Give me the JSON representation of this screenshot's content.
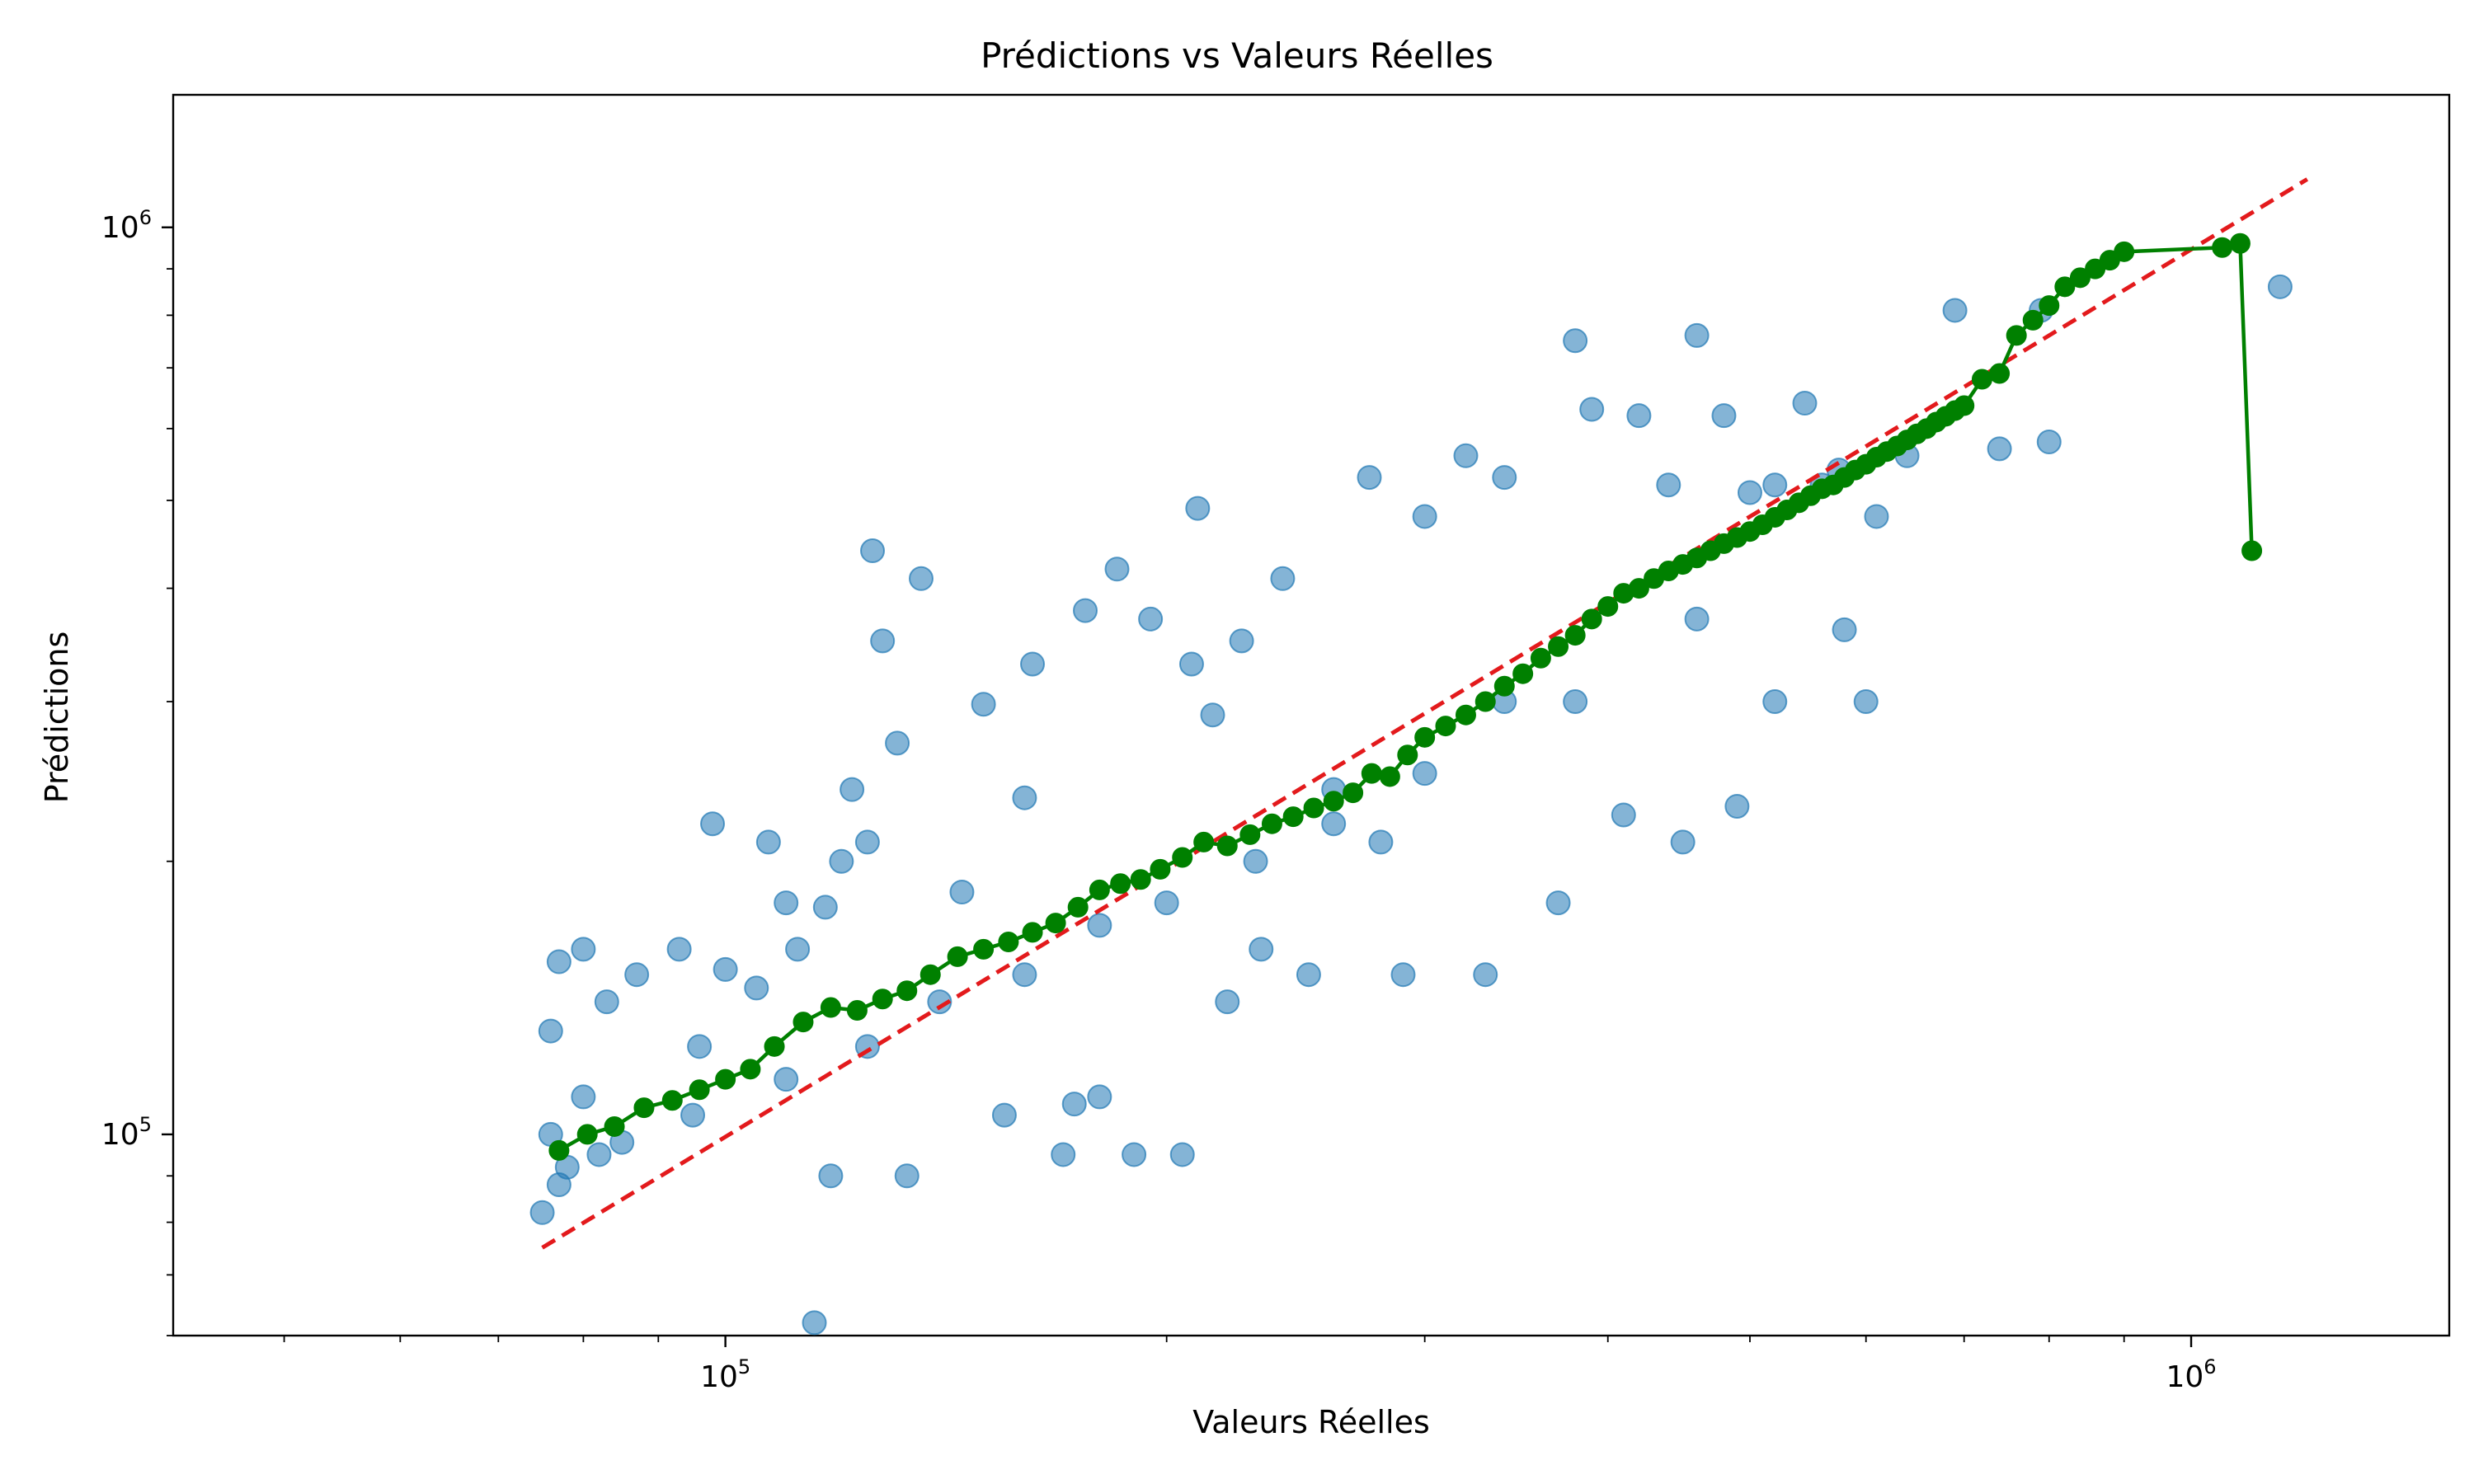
{
  "chart_data": {
    "type": "scatter",
    "title": "Prédictions vs Valeurs Réelles",
    "xlabel": "Valeurs Réelles",
    "ylabel": "Prédictions",
    "xscale": "log",
    "yscale": "log",
    "xlim": [
      42000,
      1500000
    ],
    "ylim": [
      60000,
      1400000
    ],
    "grid": false,
    "x_ticks": [
      {
        "value": 100000,
        "base": "10",
        "exp": "5"
      },
      {
        "value": 1000000,
        "base": "10",
        "exp": "6"
      }
    ],
    "y_ticks": [
      {
        "value": 100000,
        "base": "10",
        "exp": "5"
      },
      {
        "value": 1000000,
        "base": "10",
        "exp": "6"
      }
    ],
    "colors": {
      "scatter": "#1f77b4",
      "reference": "#e31a1c",
      "trend": "#008000"
    },
    "series": [
      {
        "kind": "scatter",
        "points": [
          [
            75000,
            82000
          ],
          [
            76000,
            130000
          ],
          [
            77000,
            155000
          ],
          [
            80000,
            160000
          ],
          [
            83000,
            140000
          ],
          [
            87000,
            150000
          ],
          [
            93000,
            160000
          ],
          [
            96000,
            125000
          ],
          [
            98000,
            220000
          ],
          [
            100000,
            152000
          ],
          [
            107000,
            210000
          ],
          [
            105000,
            145000
          ],
          [
            110000,
            180000
          ],
          [
            112000,
            160000
          ],
          [
            115000,
            62000
          ],
          [
            117000,
            178000
          ],
          [
            118000,
            90000
          ],
          [
            120000,
            200000
          ],
          [
            122000,
            240000
          ],
          [
            125000,
            210000
          ],
          [
            126000,
            440000
          ],
          [
            128000,
            350000
          ],
          [
            131000,
            270000
          ],
          [
            136000,
            410000
          ],
          [
            133000,
            90000
          ],
          [
            145000,
            185000
          ],
          [
            150000,
            298000
          ],
          [
            155000,
            105000
          ],
          [
            160000,
            235000
          ],
          [
            162000,
            330000
          ],
          [
            170000,
            95000
          ],
          [
            173000,
            108000
          ],
          [
            176000,
            378000
          ],
          [
            180000,
            110000
          ],
          [
            185000,
            420000
          ],
          [
            190000,
            95000
          ],
          [
            195000,
            370000
          ],
          [
            205000,
            95000
          ],
          [
            208000,
            330000
          ],
          [
            210000,
            490000
          ],
          [
            215000,
            290000
          ],
          [
            220000,
            140000
          ],
          [
            225000,
            350000
          ],
          [
            232000,
            160000
          ],
          [
            240000,
            410000
          ],
          [
            250000,
            150000
          ],
          [
            260000,
            240000
          ],
          [
            275000,
            530000
          ],
          [
            280000,
            210000
          ],
          [
            290000,
            150000
          ],
          [
            300000,
            480000
          ],
          [
            320000,
            560000
          ],
          [
            330000,
            150000
          ],
          [
            340000,
            530000
          ],
          [
            370000,
            180000
          ],
          [
            380000,
            750000
          ],
          [
            390000,
            630000
          ],
          [
            410000,
            225000
          ],
          [
            420000,
            620000
          ],
          [
            440000,
            520000
          ],
          [
            450000,
            210000
          ],
          [
            460000,
            760000
          ],
          [
            480000,
            620000
          ],
          [
            490000,
            230000
          ],
          [
            500000,
            510000
          ],
          [
            520000,
            300000
          ],
          [
            545000,
            640000
          ],
          [
            560000,
            520000
          ],
          [
            575000,
            540000
          ],
          [
            580000,
            360000
          ],
          [
            600000,
            300000
          ],
          [
            610000,
            480000
          ],
          [
            640000,
            560000
          ],
          [
            690000,
            810000
          ],
          [
            740000,
            570000
          ],
          [
            790000,
            810000
          ],
          [
            800000,
            580000
          ],
          [
            1150000,
            860000
          ],
          [
            520000,
            520000
          ],
          [
            460000,
            370000
          ],
          [
            380000,
            300000
          ],
          [
            340000,
            300000
          ],
          [
            300000,
            250000
          ],
          [
            260000,
            220000
          ],
          [
            230000,
            200000
          ],
          [
            200000,
            180000
          ],
          [
            180000,
            170000
          ],
          [
            160000,
            150000
          ],
          [
            140000,
            140000
          ],
          [
            125000,
            125000
          ],
          [
            110000,
            115000
          ],
          [
            95000,
            105000
          ],
          [
            85000,
            98000
          ],
          [
            78000,
            92000
          ],
          [
            76000,
            100000
          ],
          [
            77000,
            88000
          ],
          [
            80000,
            110000
          ],
          [
            82000,
            95000
          ]
        ]
      },
      {
        "kind": "line",
        "name": "",
        "points": [
          [
            75000,
            75000
          ],
          [
            1200000,
            1130000
          ]
        ]
      },
      {
        "kind": "line-markers",
        "name": "",
        "points": [
          [
            77000,
            96000
          ],
          [
            80500,
            100000
          ],
          [
            84000,
            102000
          ],
          [
            88000,
            107000
          ],
          [
            92000,
            109000
          ],
          [
            96000,
            112000
          ],
          [
            100000,
            115000
          ],
          [
            104000,
            118000
          ],
          [
            108000,
            125000
          ],
          [
            113000,
            133000
          ],
          [
            118000,
            138000
          ],
          [
            123000,
            137000
          ],
          [
            128000,
            141000
          ],
          [
            133000,
            144000
          ],
          [
            138000,
            150000
          ],
          [
            144000,
            157000
          ],
          [
            150000,
            160000
          ],
          [
            156000,
            163000
          ],
          [
            162000,
            167000
          ],
          [
            168000,
            171000
          ],
          [
            174000,
            178000
          ],
          [
            180000,
            186000
          ],
          [
            186000,
            189000
          ],
          [
            192000,
            191000
          ],
          [
            198000,
            196000
          ],
          [
            205000,
            202000
          ],
          [
            212000,
            210000
          ],
          [
            220000,
            208000
          ],
          [
            228000,
            214000
          ],
          [
            236000,
            220000
          ],
          [
            244000,
            224000
          ],
          [
            252000,
            229000
          ],
          [
            260000,
            233000
          ],
          [
            268000,
            238000
          ],
          [
            276000,
            250000
          ],
          [
            284000,
            248000
          ],
          [
            292000,
            262000
          ],
          [
            300000,
            274000
          ],
          [
            310000,
            282000
          ],
          [
            320000,
            290000
          ],
          [
            330000,
            300000
          ],
          [
            340000,
            312000
          ],
          [
            350000,
            322000
          ],
          [
            360000,
            335000
          ],
          [
            370000,
            345000
          ],
          [
            380000,
            355000
          ],
          [
            390000,
            370000
          ],
          [
            400000,
            382000
          ],
          [
            410000,
            395000
          ],
          [
            420000,
            400000
          ],
          [
            430000,
            410000
          ],
          [
            440000,
            418000
          ],
          [
            450000,
            425000
          ],
          [
            460000,
            432000
          ],
          [
            470000,
            440000
          ],
          [
            480000,
            448000
          ],
          [
            490000,
            455000
          ],
          [
            500000,
            462000
          ],
          [
            510000,
            470000
          ],
          [
            520000,
            479000
          ],
          [
            530000,
            488000
          ],
          [
            540000,
            497000
          ],
          [
            550000,
            506000
          ],
          [
            560000,
            515000
          ],
          [
            570000,
            520000
          ],
          [
            580000,
            530000
          ],
          [
            590000,
            540000
          ],
          [
            600000,
            548000
          ],
          [
            610000,
            558000
          ],
          [
            620000,
            566000
          ],
          [
            630000,
            574000
          ],
          [
            640000,
            583000
          ],
          [
            650000,
            592000
          ],
          [
            660000,
            600000
          ],
          [
            670000,
            610000
          ],
          [
            680000,
            619000
          ],
          [
            690000,
            628000
          ],
          [
            700000,
            636000
          ],
          [
            720000,
            680000
          ],
          [
            740000,
            690000
          ],
          [
            760000,
            760000
          ],
          [
            780000,
            790000
          ],
          [
            800000,
            820000
          ],
          [
            820000,
            860000
          ],
          [
            840000,
            880000
          ],
          [
            860000,
            900000
          ],
          [
            880000,
            920000
          ],
          [
            900000,
            940000
          ],
          [
            1050000,
            950000
          ],
          [
            1080000,
            960000
          ],
          [
            1100000,
            440000
          ]
        ]
      }
    ]
  }
}
